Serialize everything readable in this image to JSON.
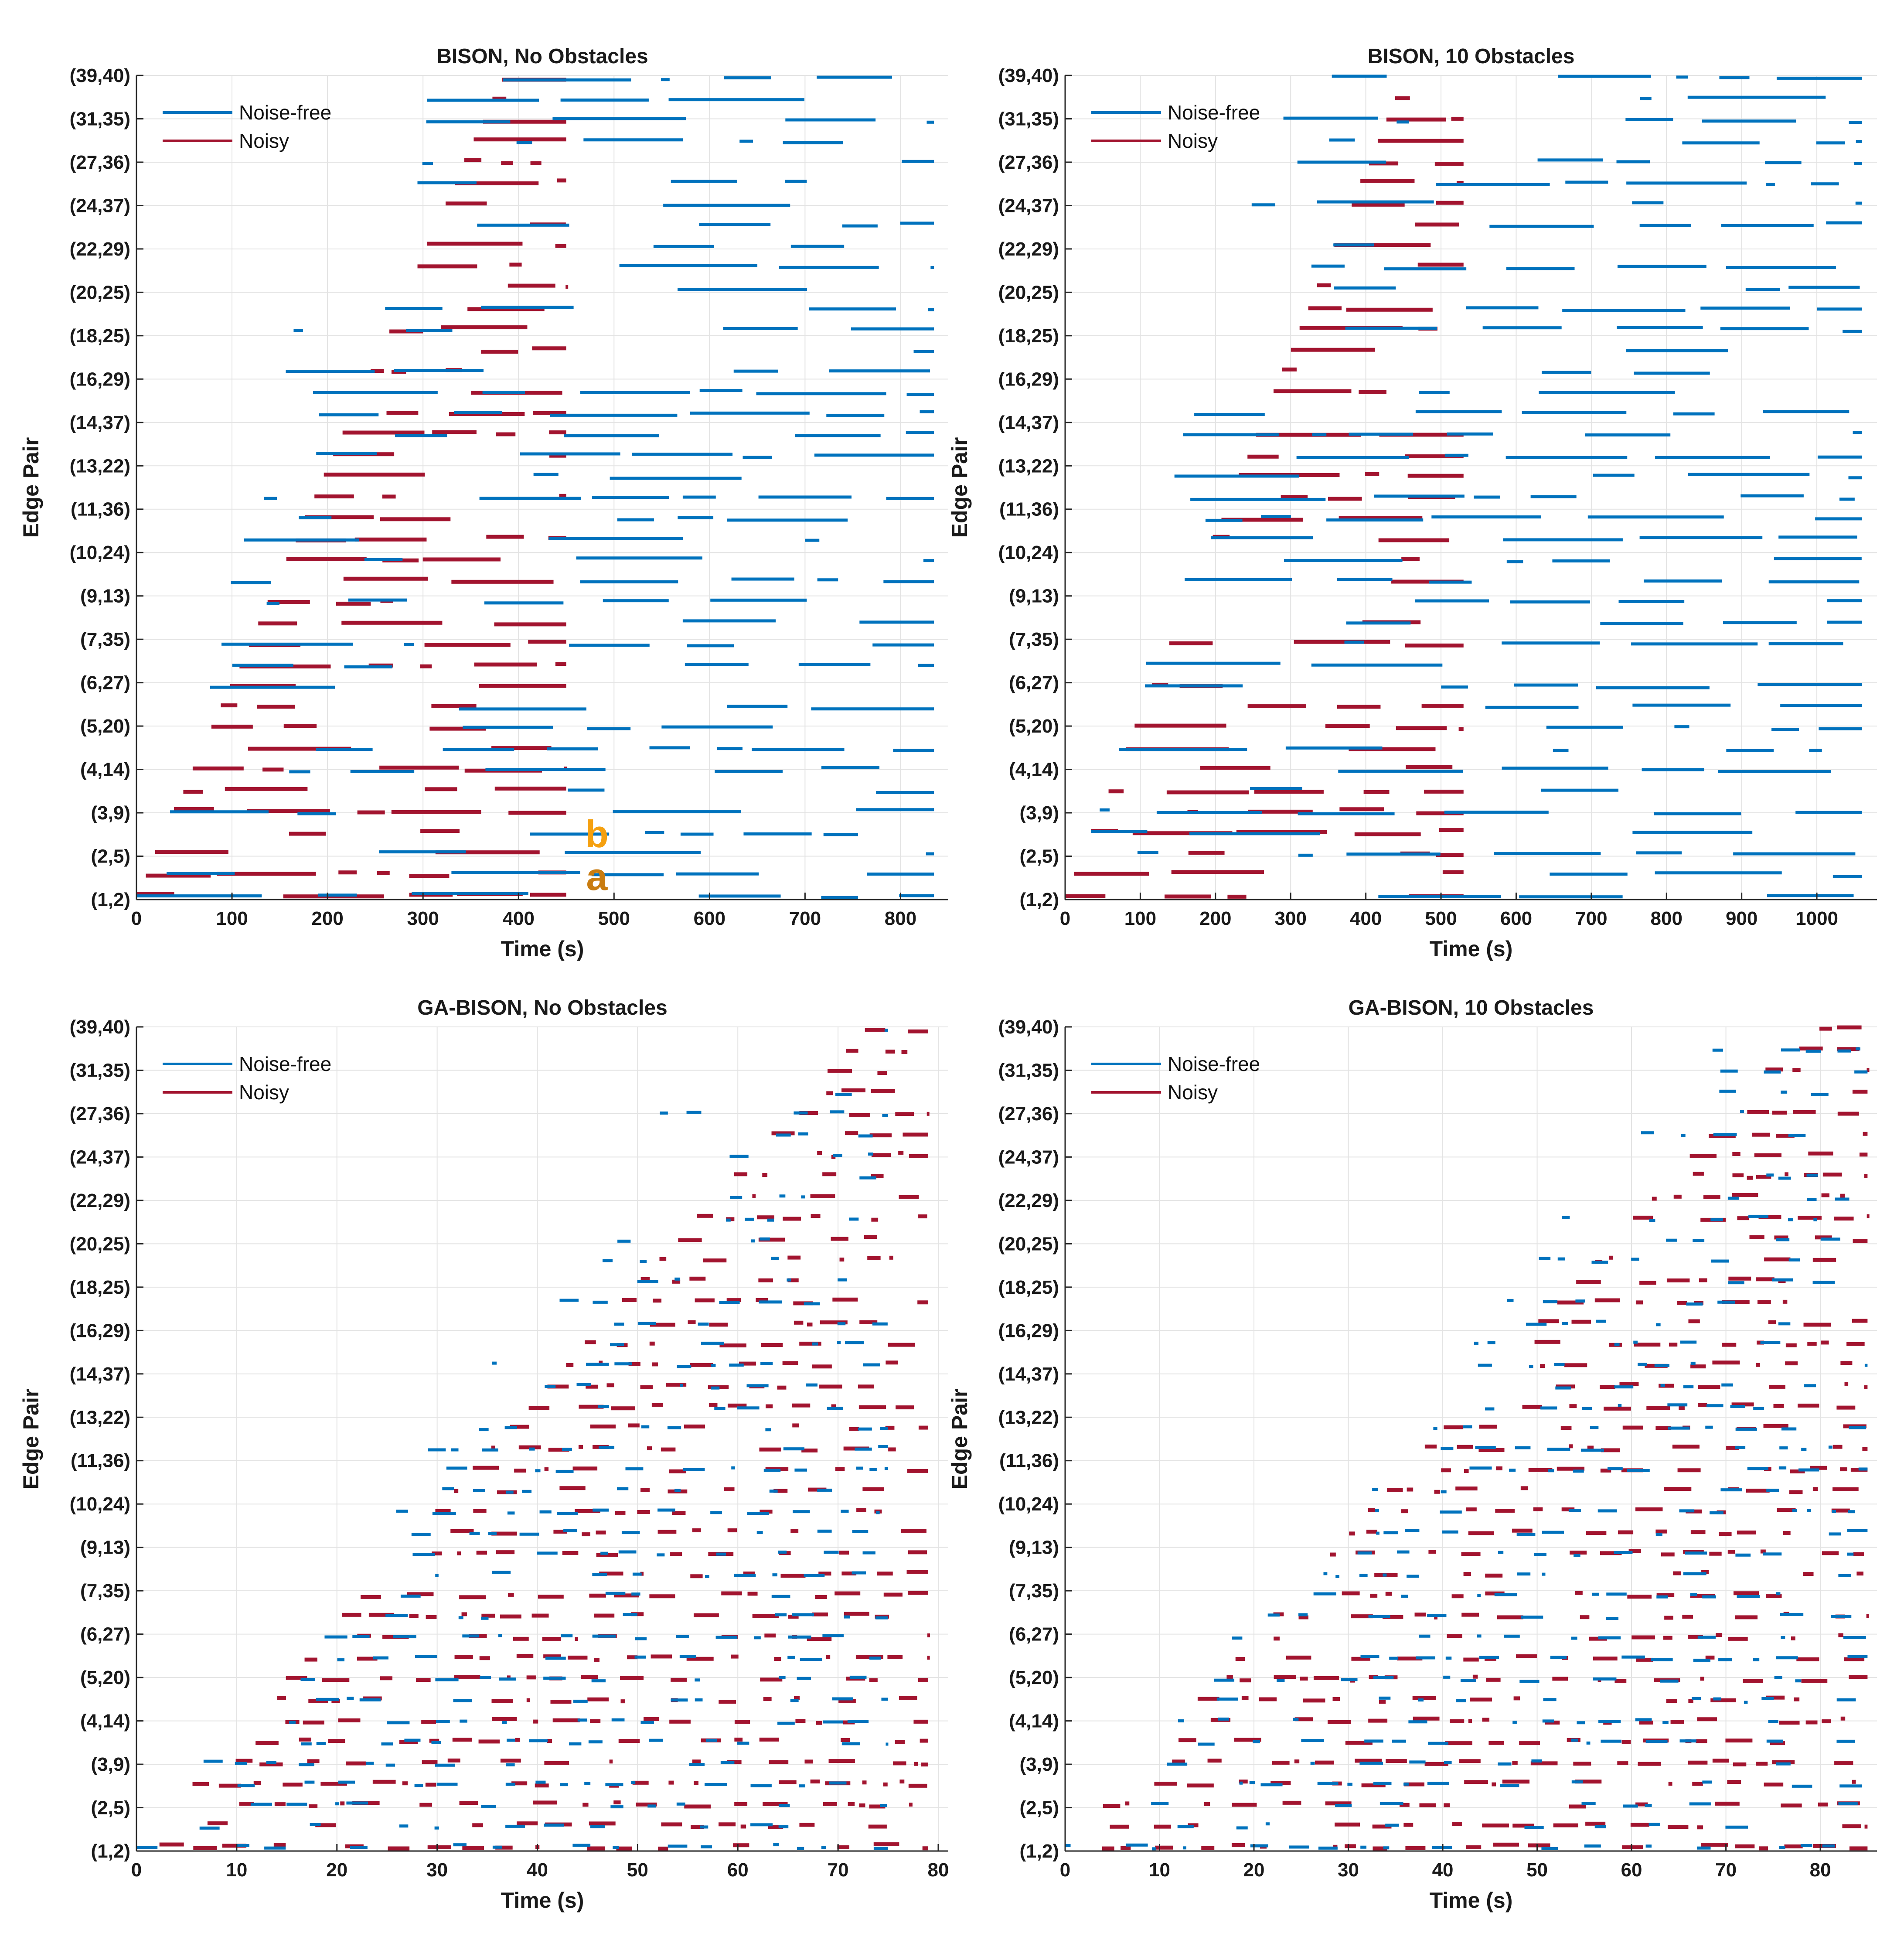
{
  "colors": {
    "noise_free": "#0072bd",
    "noisy": "#a2142f",
    "annot_b": "#f5a00f",
    "annot_a": "#c97c10"
  },
  "chart_data": [
    {
      "type": "timeline",
      "title": "BISON, No Obstacles",
      "xlabel": "Time (s)",
      "ylabel": "Edge Pair",
      "xlim": [
        0,
        850
      ],
      "xticks": [
        0,
        100,
        200,
        300,
        400,
        500,
        600,
        700,
        800
      ],
      "ytick_labels": [
        "(1,2)",
        "(2,5)",
        "(3,9)",
        "(4,14)",
        "(5,20)",
        "(6,27)",
        "(7,35)",
        "(9,13)",
        "(10,24)",
        "(11,36)",
        "(13,22)",
        "(14,37)",
        "(16,29)",
        "(18,25)",
        "(20,25)",
        "(22,29)",
        "(24,37)",
        "(27,36)",
        "(31,35)",
        "(39,40)"
      ],
      "legend": [
        "Noise-free",
        "Noisy"
      ],
      "annotations": [
        "b",
        "a"
      ],
      "series": [
        {
          "name": "Noise-free",
          "start_min": 0,
          "start_max": 450,
          "end": 835
        },
        {
          "name": "Noisy",
          "start_min": 0,
          "start_max": 450,
          "end": 450
        }
      ]
    },
    {
      "type": "timeline",
      "title": "BISON, 10 Obstacles",
      "xlabel": "Time (s)",
      "ylabel": "Edge Pair",
      "xlim": [
        0,
        1080
      ],
      "xticks": [
        0,
        100,
        200,
        300,
        400,
        500,
        600,
        700,
        800,
        900,
        1000
      ],
      "ytick_labels": [
        "(1,2)",
        "(2,5)",
        "(3,9)",
        "(4,14)",
        "(5,20)",
        "(6,27)",
        "(7,35)",
        "(9,13)",
        "(10,24)",
        "(11,36)",
        "(13,22)",
        "(14,37)",
        "(16,29)",
        "(18,25)",
        "(20,25)",
        "(22,29)",
        "(24,37)",
        "(27,36)",
        "(31,35)",
        "(39,40)"
      ],
      "legend": [
        "Noise-free",
        "Noisy"
      ],
      "series": [
        {
          "name": "Noise-free",
          "start_min": 0,
          "start_max": 530,
          "end": 1060
        },
        {
          "name": "Noisy",
          "start_min": 0,
          "start_max": 530,
          "end": 530
        }
      ]
    },
    {
      "type": "timeline",
      "title": "GA-BISON, No Obstacles",
      "xlabel": "Time (s)",
      "ylabel": "Edge Pair",
      "xlim": [
        0,
        81
      ],
      "xticks": [
        0,
        10,
        20,
        30,
        40,
        50,
        60,
        70,
        80
      ],
      "ytick_labels": [
        "(1,2)",
        "(2,5)",
        "(3,9)",
        "(4,14)",
        "(5,20)",
        "(6,27)",
        "(7,35)",
        "(9,13)",
        "(10,24)",
        "(11,36)",
        "(13,22)",
        "(14,37)",
        "(16,29)",
        "(18,25)",
        "(20,25)",
        "(22,29)",
        "(24,37)",
        "(27,36)",
        "(31,35)",
        "(39,40)"
      ],
      "legend": [
        "Noise-free",
        "Noisy"
      ],
      "series": [
        {
          "name": "Noise-free",
          "start_min": 0,
          "start_max": 75,
          "end": 75
        },
        {
          "name": "Noisy",
          "start_min": 0,
          "start_max": 79,
          "end": 79
        }
      ]
    },
    {
      "type": "timeline",
      "title": "GA-BISON, 10 Obstacles",
      "xlabel": "Time (s)",
      "ylabel": "Edge Pair",
      "xlim": [
        0,
        86
      ],
      "xticks": [
        0,
        10,
        20,
        30,
        40,
        50,
        60,
        70,
        80
      ],
      "ytick_labels": [
        "(1,2)",
        "(2,5)",
        "(3,9)",
        "(4,14)",
        "(5,20)",
        "(6,27)",
        "(7,35)",
        "(9,13)",
        "(10,24)",
        "(11,36)",
        "(13,22)",
        "(14,37)",
        "(16,29)",
        "(18,25)",
        "(20,25)",
        "(22,29)",
        "(24,37)",
        "(27,36)",
        "(31,35)",
        "(39,40)"
      ],
      "legend": [
        "Noise-free",
        "Noisy"
      ],
      "series": [
        {
          "name": "Noise-free",
          "start_min": 0,
          "start_max": 85,
          "end": 85
        },
        {
          "name": "Noisy",
          "start_min": 0,
          "start_max": 85,
          "end": 85
        }
      ]
    }
  ]
}
